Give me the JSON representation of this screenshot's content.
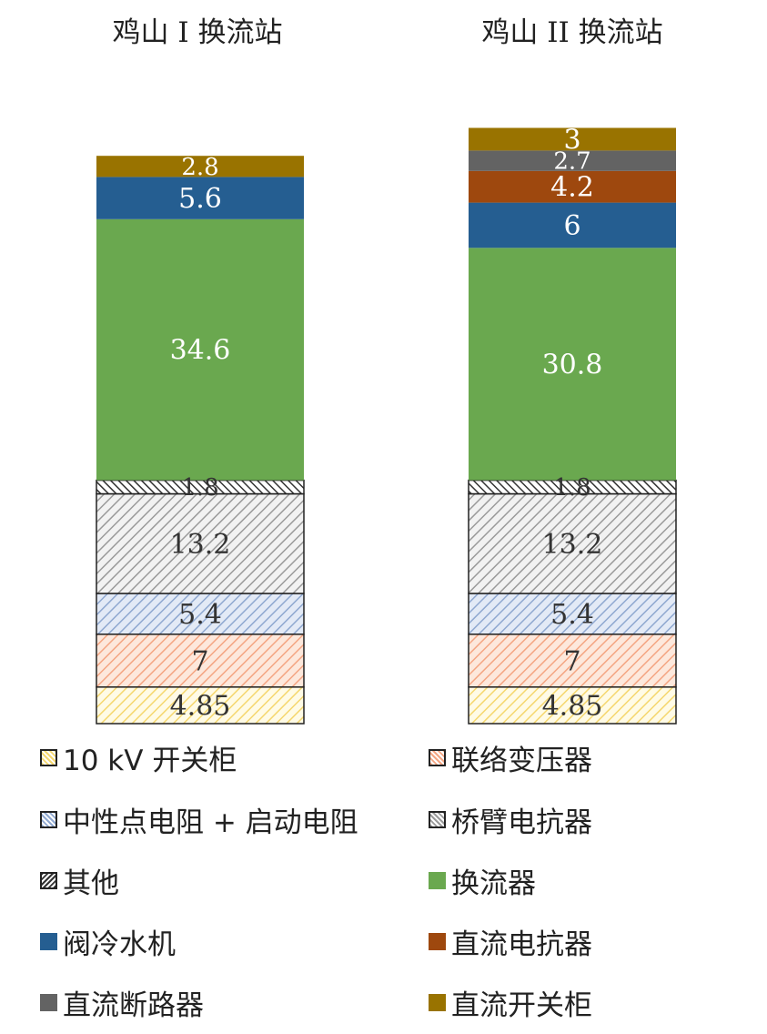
{
  "chart_data": {
    "type": "bar",
    "stacked": true,
    "categories": [
      "鸡山 I 换流站",
      "鸡山 II 换流站"
    ],
    "series": [
      {
        "name": "10 kV 开关柜",
        "values": [
          "4.85",
          "4.85"
        ],
        "color": "#f5d76e",
        "pattern": "hatch-yellow"
      },
      {
        "name": "联络变压器",
        "values": [
          "7",
          "7"
        ],
        "color": "#f4a582",
        "pattern": "hatch-orange"
      },
      {
        "name": "中性点电阻 + 启动电阻",
        "values": [
          "5.4",
          "5.4"
        ],
        "color": "#8fa8d0",
        "pattern": "hatch-blue"
      },
      {
        "name": "桥臂电抗器",
        "values": [
          "13.2",
          "13.2"
        ],
        "color": "#9a9a9a",
        "pattern": "hatch-gray"
      },
      {
        "name": "其他",
        "values": [
          "1.8",
          "1.8"
        ],
        "color": "#333333",
        "pattern": "hatch-dark"
      },
      {
        "name": "换流器",
        "values": [
          "34.6",
          "30.8"
        ],
        "color": "#6aa84f",
        "pattern": "solid"
      },
      {
        "name": "阀冷水机",
        "values": [
          "5.6",
          "6"
        ],
        "color": "#255e91",
        "pattern": "solid"
      },
      {
        "name": "直流电抗器",
        "values": [
          null,
          "4.2"
        ],
        "color": "#9e480e",
        "pattern": "solid"
      },
      {
        "name": "直流断路器",
        "values": [
          null,
          "2.7"
        ],
        "color": "#636363",
        "pattern": "solid"
      },
      {
        "name": "直流开关柜",
        "values": [
          "2.8",
          "3"
        ],
        "color": "#997300",
        "pattern": "solid"
      }
    ],
    "data_labels": true,
    "legend_position": "bottom"
  }
}
